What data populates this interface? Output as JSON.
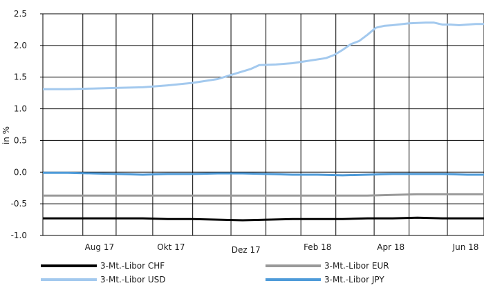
{
  "chart_data": {
    "type": "line",
    "ylabel": "in %",
    "ylim": [
      -1.0,
      2.5
    ],
    "yticks": [
      "2.5",
      "2.0",
      "1.5",
      "1.0",
      "0.5",
      "0.0",
      "-0.5",
      "-1.0"
    ],
    "xticks": [
      "Aug 17",
      "Okt 17",
      "Dez 17",
      "Feb 18",
      "Apr 18",
      "Jun 18"
    ],
    "grid": true,
    "legend_position": "bottom",
    "series": [
      {
        "name": "3-Mt.-Libor CHF",
        "color": "#000000",
        "values": [
          [
            0,
            -0.73
          ],
          [
            15,
            -0.73
          ],
          [
            30,
            -0.73
          ],
          [
            45,
            -0.73
          ],
          [
            60,
            -0.73
          ],
          [
            75,
            -0.74
          ],
          [
            90,
            -0.74
          ],
          [
            105,
            -0.75
          ],
          [
            120,
            -0.76
          ],
          [
            135,
            -0.75
          ],
          [
            150,
            -0.74
          ],
          [
            165,
            -0.74
          ],
          [
            180,
            -0.74
          ],
          [
            195,
            -0.73
          ],
          [
            210,
            -0.73
          ],
          [
            225,
            -0.72
          ],
          [
            240,
            -0.73
          ],
          [
            255,
            -0.73
          ],
          [
            265,
            -0.73
          ]
        ]
      },
      {
        "name": "3-Mt.-Libor EUR",
        "color": "#999999",
        "values": [
          [
            0,
            -0.37
          ],
          [
            15,
            -0.37
          ],
          [
            30,
            -0.37
          ],
          [
            45,
            -0.37
          ],
          [
            60,
            -0.37
          ],
          [
            75,
            -0.37
          ],
          [
            90,
            -0.37
          ],
          [
            105,
            -0.37
          ],
          [
            120,
            -0.37
          ],
          [
            135,
            -0.37
          ],
          [
            150,
            -0.37
          ],
          [
            165,
            -0.37
          ],
          [
            180,
            -0.37
          ],
          [
            195,
            -0.37
          ],
          [
            210,
            -0.36
          ],
          [
            225,
            -0.35
          ],
          [
            240,
            -0.35
          ],
          [
            255,
            -0.35
          ],
          [
            265,
            -0.35
          ]
        ]
      },
      {
        "name": "3-Mt.-Libor USD",
        "color": "#a3c9ee",
        "values": [
          [
            0,
            1.31
          ],
          [
            15,
            1.31
          ],
          [
            30,
            1.32
          ],
          [
            45,
            1.33
          ],
          [
            60,
            1.34
          ],
          [
            75,
            1.37
          ],
          [
            90,
            1.41
          ],
          [
            105,
            1.47
          ],
          [
            115,
            1.55
          ],
          [
            125,
            1.63
          ],
          [
            130,
            1.69
          ],
          [
            140,
            1.7
          ],
          [
            150,
            1.72
          ],
          [
            160,
            1.76
          ],
          [
            170,
            1.8
          ],
          [
            175,
            1.85
          ],
          [
            180,
            1.93
          ],
          [
            185,
            2.02
          ],
          [
            190,
            2.07
          ],
          [
            195,
            2.17
          ],
          [
            200,
            2.28
          ],
          [
            205,
            2.31
          ],
          [
            210,
            2.32
          ],
          [
            220,
            2.35
          ],
          [
            230,
            2.36
          ],
          [
            235,
            2.36
          ],
          [
            240,
            2.33
          ],
          [
            245,
            2.33
          ],
          [
            250,
            2.32
          ],
          [
            255,
            2.33
          ],
          [
            260,
            2.34
          ],
          [
            265,
            2.34
          ]
        ]
      },
      {
        "name": "3-Mt.-Libor JPY",
        "color": "#4f9bd9",
        "values": [
          [
            0,
            -0.01
          ],
          [
            15,
            -0.01
          ],
          [
            30,
            -0.02
          ],
          [
            45,
            -0.03
          ],
          [
            60,
            -0.04
          ],
          [
            75,
            -0.03
          ],
          [
            90,
            -0.03
          ],
          [
            105,
            -0.02
          ],
          [
            120,
            -0.02
          ],
          [
            135,
            -0.03
          ],
          [
            150,
            -0.04
          ],
          [
            165,
            -0.04
          ],
          [
            180,
            -0.05
          ],
          [
            195,
            -0.04
          ],
          [
            210,
            -0.03
          ],
          [
            225,
            -0.03
          ],
          [
            240,
            -0.03
          ],
          [
            255,
            -0.04
          ],
          [
            265,
            -0.04
          ]
        ]
      }
    ]
  }
}
